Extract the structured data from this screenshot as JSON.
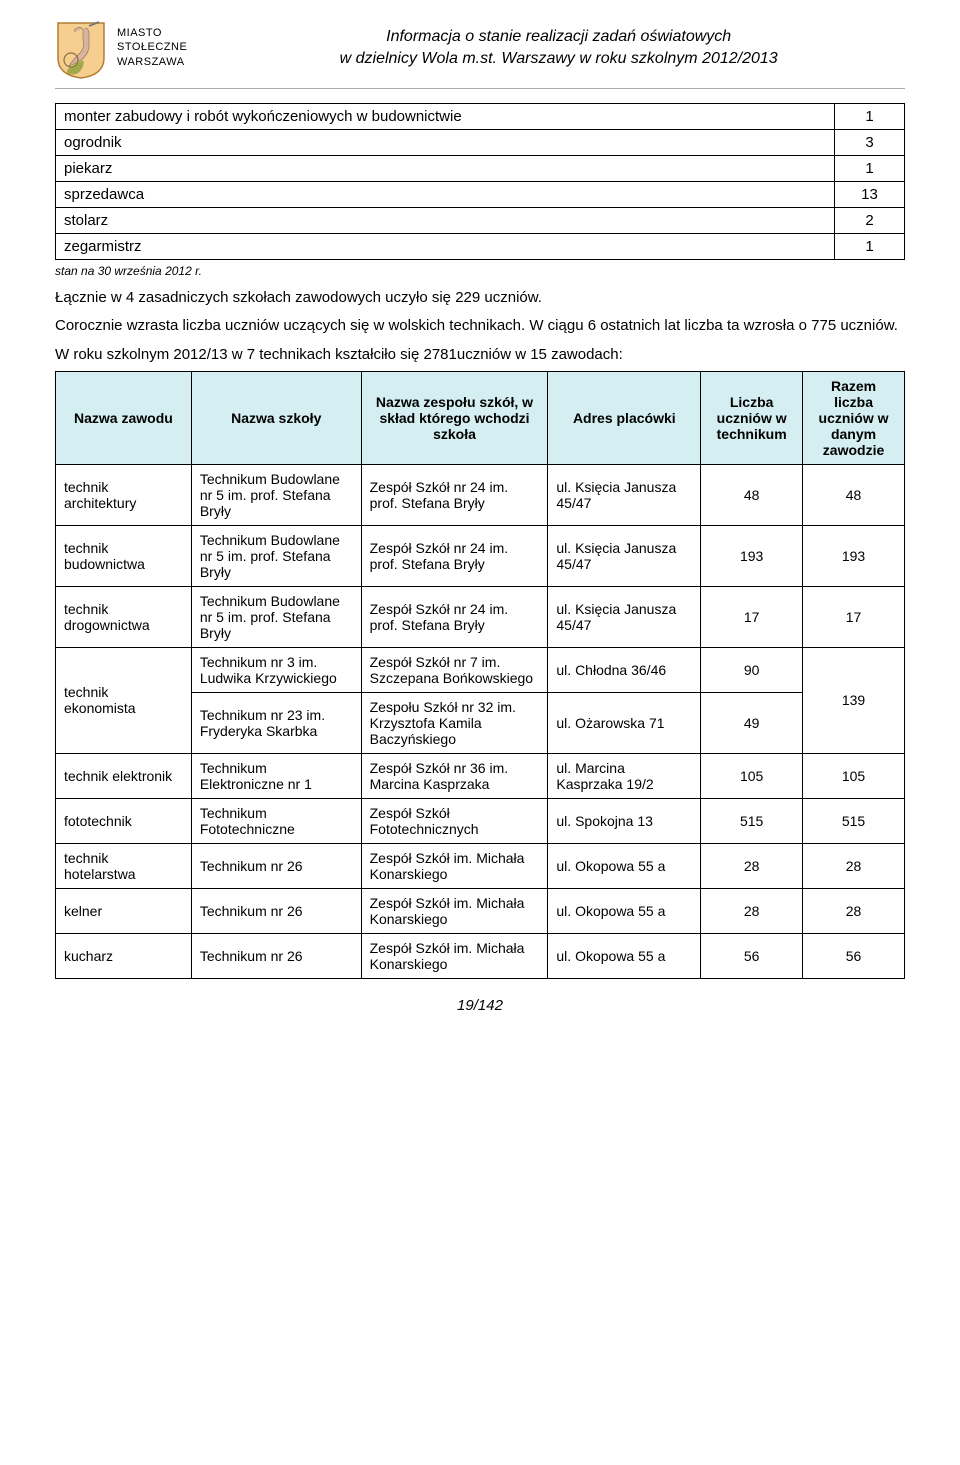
{
  "header": {
    "city_line1": "MIASTO",
    "city_line2": "STOŁECZNE",
    "city_line3": "WARSZAWA",
    "doc_title_line1": "Informacja o stanie realizacji zadań oświatowych",
    "doc_title_line2": "w dzielnicy Wola m.st. Warszawy w roku szkolnym 2012/2013",
    "crest_colors": {
      "shield": "#f4d03f",
      "figure": "#d8b4a0",
      "sword": "#888888",
      "border": "#b08030"
    }
  },
  "small_table": {
    "rows": [
      {
        "label": "monter zabudowy i robót wykończeniowych w budownictwie",
        "value": "1"
      },
      {
        "label": "ogrodnik",
        "value": "3"
      },
      {
        "label": "piekarz",
        "value": "1"
      },
      {
        "label": "sprzedawca",
        "value": "13"
      },
      {
        "label": "stolarz",
        "value": "2"
      },
      {
        "label": "zegarmistrz",
        "value": "1"
      }
    ]
  },
  "note": "stan na 30 września 2012 r.",
  "para1": "Łącznie w 4 zasadniczych szkołach zawodowych uczyło się 229 uczniów.",
  "para2": "Corocznie wzrasta liczba uczniów uczących się w wolskich technikach. W ciągu 6 ostatnich lat liczba ta wzrosła o 775 uczniów.",
  "para3": "W roku szkolnym 2012/13 w 7 technikach kształciło się 2781uczniów w 15 zawodach:",
  "big_table": {
    "headers": {
      "c1": "Nazwa zawodu",
      "c2": "Nazwa szkoły",
      "c3": "Nazwa zespołu szkół, w skład którego wchodzi szkoła",
      "c4": "Adres placówki",
      "c5": "Liczba uczniów w technikum",
      "c6": "Razem liczba uczniów w danym zawodzie"
    },
    "rows": [
      {
        "zawod": "technik architektury",
        "szkola": "Technikum Budowlane nr 5 im. prof. Stefana Bryły",
        "zespol": "Zespół Szkół nr 24 im. prof. Stefana Bryły",
        "adres": "ul. Księcia Janusza 45/47",
        "liczba": "48",
        "razem": "48",
        "rowspan_zawod": 1,
        "rowspan_razem": 1
      },
      {
        "zawod": "technik budownictwa",
        "szkola": "Technikum Budowlane nr 5 im. prof. Stefana Bryły",
        "zespol": "Zespół Szkół nr 24 im. prof. Stefana Bryły",
        "adres": "ul. Księcia Janusza 45/47",
        "liczba": "193",
        "razem": "193",
        "rowspan_zawod": 1,
        "rowspan_razem": 1
      },
      {
        "zawod": "technik drogownictwa",
        "szkola": "Technikum Budowlane nr 5 im. prof. Stefana Bryły",
        "zespol": "Zespół Szkół nr 24 im. prof. Stefana Bryły",
        "adres": "ul. Księcia Janusza 45/47",
        "liczba": "17",
        "razem": "17",
        "rowspan_zawod": 1,
        "rowspan_razem": 1
      },
      {
        "zawod": "technik ekonomista",
        "szkola": "Technikum nr 3 im. Ludwika Krzywickiego",
        "zespol": "Zespół Szkół nr 7 im. Szczepana Bońkowskiego",
        "adres": "ul. Chłodna 36/46",
        "liczba": "90",
        "razem": "139",
        "rowspan_zawod": 2,
        "rowspan_razem": 2
      },
      {
        "szkola": "Technikum nr 23 im. Fryderyka Skarbka",
        "zespol": "Zespołu Szkół nr 32 im. Krzysztofa Kamila Baczyńskiego",
        "adres": "ul. Ożarowska 71",
        "liczba": "49"
      },
      {
        "zawod": "technik elektronik",
        "szkola": "Technikum Elektroniczne nr 1",
        "zespol": "Zespół Szkół nr 36 im. Marcina Kasprzaka",
        "adres": "ul. Marcina Kasprzaka 19/2",
        "liczba": "105",
        "razem": "105",
        "rowspan_zawod": 1,
        "rowspan_razem": 1
      },
      {
        "zawod": "fototechnik",
        "szkola": "Technikum Fototechniczne",
        "zespol": "Zespół Szkół Fototechnicznych",
        "adres": "ul. Spokojna 13",
        "liczba": "515",
        "razem": "515",
        "rowspan_zawod": 1,
        "rowspan_razem": 1
      },
      {
        "zawod": "technik hotelarstwa",
        "szkola": "Technikum nr 26",
        "zespol": "Zespół Szkół im. Michała Konarskiego",
        "adres": "ul. Okopowa 55 a",
        "liczba": "28",
        "razem": "28",
        "rowspan_zawod": 1,
        "rowspan_razem": 1
      },
      {
        "zawod": "kelner",
        "szkola": "Technikum nr 26",
        "zespol": "Zespół Szkół im. Michała Konarskiego",
        "adres": "ul. Okopowa 55 a",
        "liczba": "28",
        "razem": "28",
        "rowspan_zawod": 1,
        "rowspan_razem": 1
      },
      {
        "zawod": "kucharz",
        "szkola": "Technikum nr 26",
        "zespol": "Zespół Szkół im. Michała Konarskiego",
        "adres": "ul. Okopowa 55 a",
        "liczba": "56",
        "razem": "56",
        "rowspan_zawod": 1,
        "rowspan_razem": 1
      }
    ],
    "col_widths": {
      "c1": "16%",
      "c2": "20%",
      "c3": "22%",
      "c4": "18%",
      "c5": "12%",
      "c6": "12%"
    }
  },
  "footer": "19/142"
}
